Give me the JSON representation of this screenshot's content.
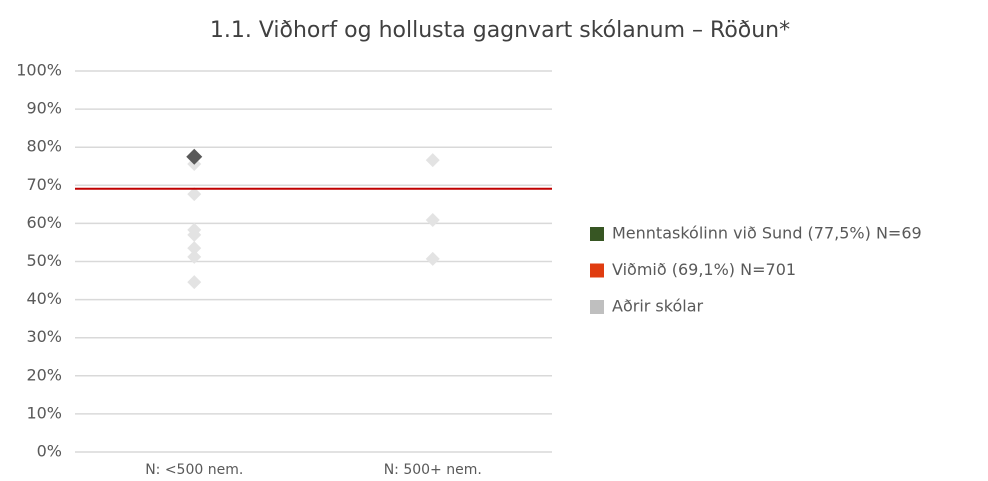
{
  "chart_data": {
    "type": "strip",
    "title": "1.1. Viðhorf og hollusta gagnvart skólanum – Röðun*",
    "categories": [
      "N: <500 nem.",
      "N: 500+ nem."
    ],
    "ylim": [
      0,
      100
    ],
    "yticks": [
      {
        "value": 0,
        "label": "0%"
      },
      {
        "value": 10,
        "label": "10%"
      },
      {
        "value": 20,
        "label": "20%"
      },
      {
        "value": 30,
        "label": "30%"
      },
      {
        "value": 40,
        "label": "40%"
      },
      {
        "value": 50,
        "label": "50%"
      },
      {
        "value": 60,
        "label": "60%"
      },
      {
        "value": 70,
        "label": "70%"
      },
      {
        "value": 80,
        "label": "80%"
      },
      {
        "value": 90,
        "label": "90%"
      },
      {
        "value": 100,
        "label": "100%"
      }
    ],
    "grid": true,
    "legend": "right",
    "series": [
      {
        "name": "Menntaskólinn við Sund (77,5%) N=69",
        "color": "#375623",
        "marker_color": "#595959",
        "values": [
          77.5,
          null
        ]
      },
      {
        "name": "Viðmið (69,1%) N=701",
        "color": "#e03c10",
        "line_color": "#c00000",
        "value": 69.1
      },
      {
        "name": "Aðrir skólar",
        "color": "#bfbfbf",
        "marker_color": "#e3e3e3",
        "values": [
          [
            75.6,
            67.7,
            58.3,
            57,
            53.5,
            51.2,
            44.6
          ],
          [
            76.6,
            60.9,
            50.7
          ]
        ]
      }
    ]
  }
}
